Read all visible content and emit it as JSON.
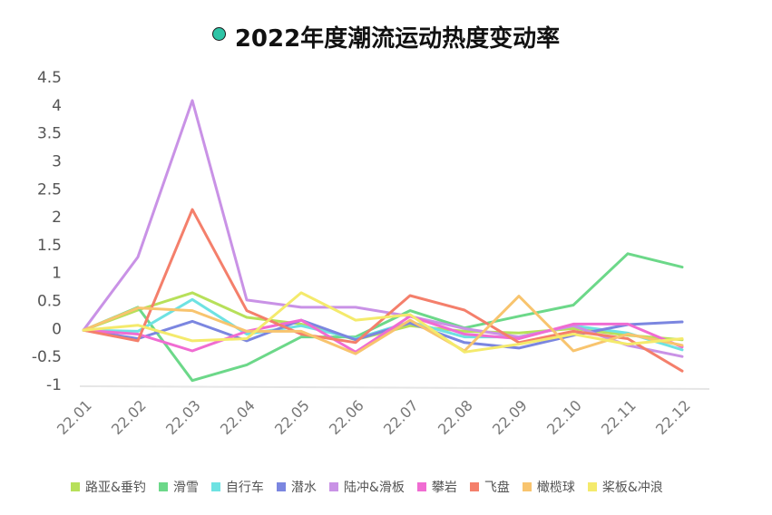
{
  "chart_data": {
    "type": "line",
    "title": "2022年度潮流运动热度变动率",
    "title_marker_color": "#2ec4a6",
    "xlabel": "",
    "ylabel": "",
    "categories": [
      "22.01",
      "22.02",
      "22.03",
      "22.04",
      "22.05",
      "22.06",
      "22.07",
      "22.08",
      "22.09",
      "22.10",
      "22.11",
      "22.12"
    ],
    "ylim": [
      -1,
      4.5
    ],
    "yticks": [
      -1,
      -0.5,
      0,
      0.5,
      1,
      1.5,
      2,
      2.5,
      3,
      3.5,
      4,
      4.5
    ],
    "ytick_labels": [
      "-1",
      "-0.5",
      "0",
      "0.5",
      "1",
      "1.5",
      "2",
      "2.5",
      "3",
      "3.5",
      "4",
      "4.5"
    ],
    "grid": false,
    "legend_position": "bottom",
    "series": [
      {
        "name": "路亚&垂钓",
        "color": "#b7e05a",
        "values": [
          -0.03,
          0.33,
          0.64,
          0.2,
          0.08,
          -0.2,
          0.05,
          -0.05,
          -0.08,
          0.0,
          -0.12,
          -0.2
        ]
      },
      {
        "name": "滑雪",
        "color": "#6cd889",
        "values": [
          -0.03,
          0.38,
          -0.93,
          -0.65,
          -0.15,
          -0.15,
          0.32,
          0.01,
          0.22,
          0.42,
          1.34,
          1.1
        ]
      },
      {
        "name": "自行车",
        "color": "#6ee2e2",
        "values": [
          -0.03,
          -0.05,
          0.52,
          -0.1,
          0.05,
          -0.18,
          0.12,
          -0.15,
          -0.15,
          0.05,
          -0.08,
          -0.38
        ]
      },
      {
        "name": "潜水",
        "color": "#7b86e0",
        "values": [
          -0.03,
          -0.18,
          0.13,
          -0.22,
          0.15,
          -0.2,
          0.1,
          -0.25,
          -0.35,
          -0.12,
          0.07,
          0.12
        ]
      },
      {
        "name": "陆冲&滑板",
        "color": "#c992e6",
        "values": [
          -0.03,
          1.28,
          4.08,
          0.51,
          0.38,
          0.38,
          0.22,
          0.0,
          -0.15,
          0.05,
          -0.3,
          -0.5
        ]
      },
      {
        "name": "攀岩",
        "color": "#f06cd2",
        "values": [
          -0.03,
          -0.1,
          -0.4,
          -0.05,
          0.15,
          -0.42,
          0.22,
          -0.1,
          -0.18,
          0.08,
          0.08,
          -0.33
        ]
      },
      {
        "name": "飞盘",
        "color": "#f47f6b",
        "values": [
          -0.03,
          -0.22,
          2.13,
          0.32,
          -0.1,
          -0.25,
          0.59,
          0.33,
          -0.25,
          -0.05,
          -0.18,
          -0.76
        ]
      },
      {
        "name": "橄榄球",
        "color": "#f8c46e",
        "values": [
          -0.03,
          0.37,
          0.32,
          -0.05,
          -0.05,
          -0.45,
          0.15,
          -0.4,
          0.58,
          -0.4,
          -0.1,
          -0.3
        ]
      },
      {
        "name": "桨板&冲浪",
        "color": "#f4ea6c",
        "values": [
          -0.03,
          0.06,
          -0.22,
          -0.18,
          0.64,
          0.15,
          0.25,
          -0.42,
          -0.28,
          -0.1,
          -0.28,
          -0.18
        ]
      }
    ]
  }
}
